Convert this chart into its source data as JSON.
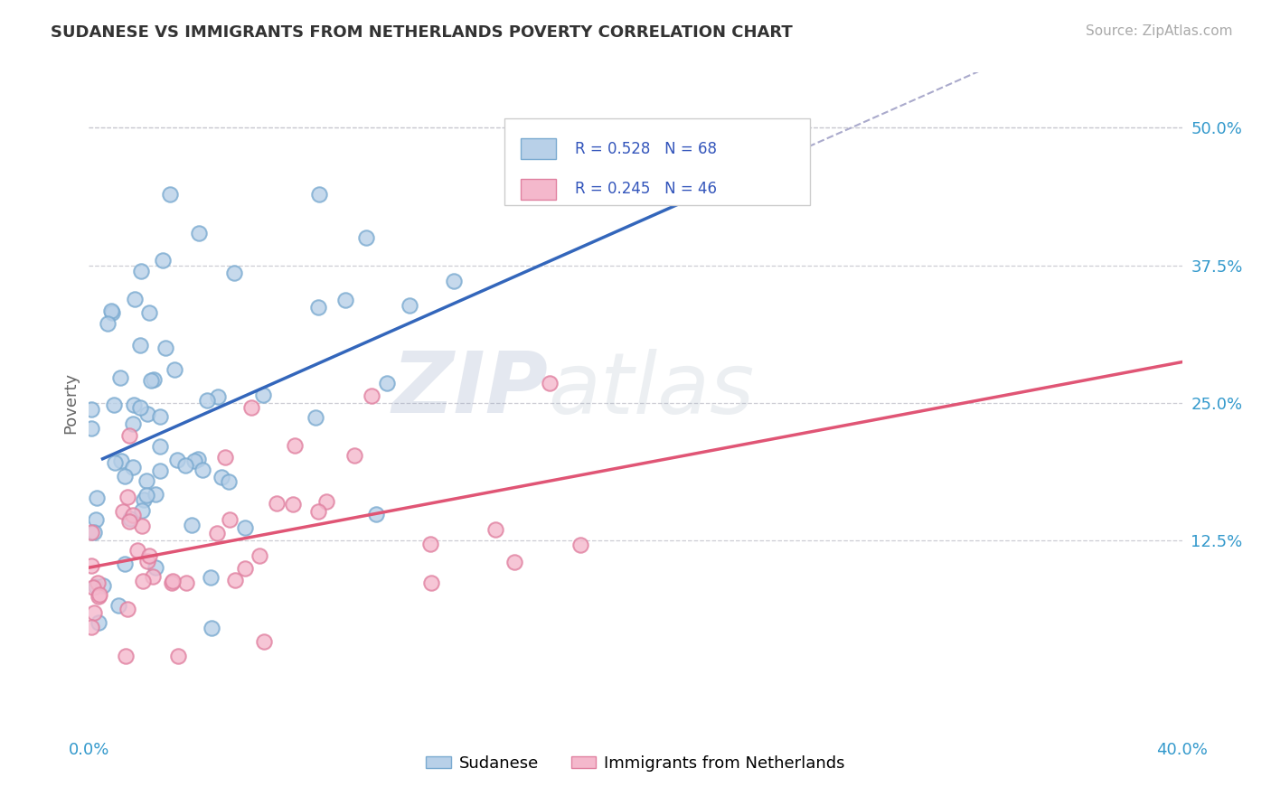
{
  "title": "SUDANESE VS IMMIGRANTS FROM NETHERLANDS POVERTY CORRELATION CHART",
  "source": "Source: ZipAtlas.com",
  "ylabel": "Poverty",
  "x_ticks": [
    0.0,
    0.4
  ],
  "x_tick_labels": [
    "0.0%",
    "40.0%"
  ],
  "y_tick_labels_right": [
    "50.0%",
    "37.5%",
    "25.0%",
    "12.5%"
  ],
  "y_ticks_right": [
    0.5,
    0.375,
    0.25,
    0.125
  ],
  "xlim": [
    0.0,
    0.4
  ],
  "ylim": [
    -0.05,
    0.55
  ],
  "grid_color": "#c8c8d0",
  "bg_color": "#ffffff",
  "series1_color": "#b8d0e8",
  "series1_edge": "#7aaad0",
  "series2_color": "#f4b8cc",
  "series2_edge": "#e080a0",
  "trend1_color": "#3366bb",
  "trend2_color": "#e05575",
  "trend1_dashed_color": "#aaaacc",
  "R1": 0.528,
  "N1": 68,
  "R2": 0.245,
  "N2": 46,
  "legend_labels": [
    "Sudanese",
    "Immigrants from Netherlands"
  ],
  "watermark_zip": "ZIP",
  "watermark_atlas": "atlas"
}
